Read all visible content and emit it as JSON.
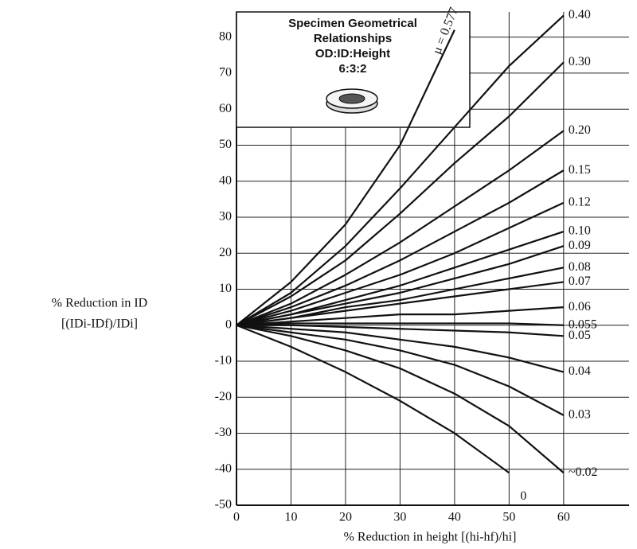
{
  "chart_data": {
    "type": "line",
    "title_lines": [
      "Specimen Geometrical",
      "Relationships",
      "OD:ID:Height",
      "6:3:2"
    ],
    "y_label_lines": [
      "% Reduction in ID",
      "[(IDi-IDf)/IDi]"
    ],
    "x_label": "% Reduction in height [(hi-hf)/hi]",
    "x": [
      0,
      10,
      20,
      30,
      40,
      50,
      60
    ],
    "xlim": [
      0,
      72
    ],
    "xticks": [
      0,
      10,
      20,
      30,
      40,
      50,
      60
    ],
    "ylim": [
      -50,
      87
    ],
    "yticks": [
      80,
      70,
      60,
      50,
      40,
      30,
      20,
      10,
      0,
      -10,
      -20,
      -30,
      -40,
      -50
    ],
    "grid": true,
    "series": [
      {
        "name": "μ = 0.577",
        "color": "#111111",
        "values": [
          0,
          12,
          28,
          50,
          82,
          null,
          null
        ]
      },
      {
        "name": "0.40",
        "color": "#111111",
        "values": [
          0,
          9,
          22,
          38,
          55,
          72,
          86
        ]
      },
      {
        "name": "0.30",
        "color": "#111111",
        "values": [
          0,
          8,
          18,
          31,
          45,
          58,
          73
        ]
      },
      {
        "name": "0.20",
        "color": "#111111",
        "values": [
          0,
          6,
          14,
          23,
          33,
          43,
          54
        ]
      },
      {
        "name": "0.15",
        "color": "#111111",
        "values": [
          0,
          5,
          11,
          18,
          26,
          34,
          43
        ]
      },
      {
        "name": "0.12",
        "color": "#111111",
        "values": [
          0,
          4,
          9,
          14,
          20,
          27,
          34
        ]
      },
      {
        "name": "0.10",
        "color": "#111111",
        "values": [
          0,
          3,
          7,
          11,
          16,
          21,
          26
        ]
      },
      {
        "name": "0.09",
        "color": "#111111",
        "values": [
          0,
          3,
          6,
          9,
          13,
          17,
          22
        ]
      },
      {
        "name": "0.08",
        "color": "#111111",
        "values": [
          0,
          2,
          5,
          7,
          10,
          13,
          16
        ]
      },
      {
        "name": "0.07",
        "color": "#111111",
        "values": [
          0,
          2,
          4,
          6,
          8,
          10,
          12
        ]
      },
      {
        "name": "0.06",
        "color": "#111111",
        "values": [
          0,
          1,
          2,
          3,
          3,
          4,
          5
        ]
      },
      {
        "name": "0.055",
        "color": "#111111",
        "values": [
          0,
          0.5,
          0.5,
          0.5,
          0.5,
          0.5,
          0
        ]
      },
      {
        "name": "0.05",
        "color": "#111111",
        "values": [
          0,
          0,
          -0.5,
          -1,
          -1.5,
          -2,
          -3
        ]
      },
      {
        "name": "0.04",
        "color": "#111111",
        "values": [
          0,
          -1,
          -2,
          -4,
          -6,
          -9,
          -13
        ]
      },
      {
        "name": "0.03",
        "color": "#111111",
        "values": [
          0,
          -2,
          -4,
          -7,
          -11,
          -17,
          -25
        ]
      },
      {
        "name": "~0.02",
        "color": "#111111",
        "values": [
          0,
          -3,
          -7,
          -12,
          -19,
          -28,
          -41
        ]
      },
      {
        "name": "0",
        "color": "#111111",
        "values": [
          0,
          -6,
          -13,
          -21,
          -30,
          -41,
          null
        ]
      }
    ]
  }
}
